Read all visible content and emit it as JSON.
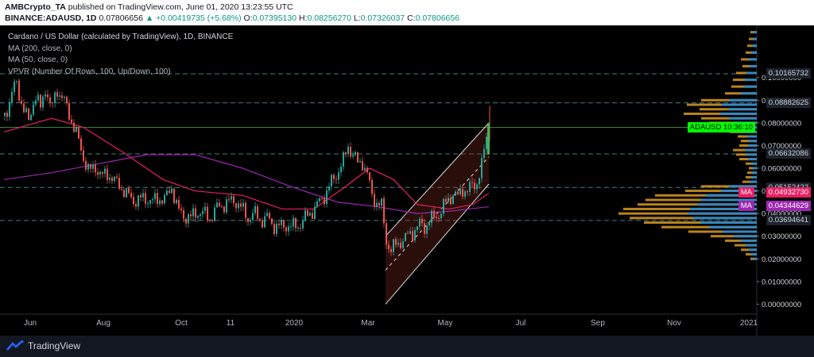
{
  "header": {
    "publisher": "AMBCrypto_TA",
    "published_text": "published on TradingView.com, June 01, 2020 13:23:55 UTC",
    "symbol": "BINANCE:ADAUSD, 1D",
    "last": "0.07806656",
    "change": "▲ +0.00419735 (+5.68%)",
    "o_label": "O:",
    "o_value": "0.07395130",
    "h_label": "H:",
    "h_value": "0.08256270",
    "l_label": "L:",
    "l_value": "0.07326037",
    "c_label": "C:",
    "c_value": "0.07806656"
  },
  "legend": {
    "title": "Cardano / US Dollar (calculated by TradingView), 1D, BINANCE",
    "ma200": "MA (200, close, 0)",
    "ma50": "MA (50, close, 0)",
    "vpvr": "VPVR (Number Of Rows, 100, Up/Down, 100)"
  },
  "footer": {
    "brand": "TradingView"
  },
  "colors": {
    "up": "#26a69a",
    "down": "#ef5350",
    "ma200": "#9c27b0",
    "ma50": "#e91e63",
    "vol_up": "#2e88c9",
    "vol_down": "#d99a25",
    "last_tag": "#00ff00"
  },
  "chart_data": {
    "type": "candlestick",
    "title": "Cardano / US Dollar (calculated by TradingView), 1D, BINANCE",
    "y_range": [
      -0.003,
      0.123
    ],
    "x_labels": [
      "Jun",
      "Aug",
      "Oct",
      "11",
      "2020",
      "Mar",
      "May",
      "Jul",
      "Sep",
      "Nov",
      "2021"
    ],
    "y_ticks": [
      "0.00000000",
      "0.01000000",
      "0.02000000",
      "0.03000000",
      "0.04000000",
      "0.05000000",
      "0.06000000",
      "0.07000000",
      "0.08000000",
      "0.09000000",
      "0.10000000"
    ],
    "price_tags": [
      {
        "label": "0.10165732",
        "value": 0.10165732,
        "kind": "level"
      },
      {
        "label": "0.08882625",
        "value": 0.08882625,
        "kind": "level"
      },
      {
        "label": "0.07806656",
        "value": 0.07806656,
        "kind": "last"
      },
      {
        "label": "0.06632086",
        "value": 0.06632086,
        "kind": "level"
      },
      {
        "label": "0.05152422",
        "value": 0.05152422,
        "kind": "level"
      },
      {
        "label": "0.04932730",
        "value": 0.0493273,
        "kind": "ma50"
      },
      {
        "label": "0.04344629",
        "value": 0.04344629,
        "kind": "ma200"
      },
      {
        "label": "0.03694641",
        "value": 0.03694641,
        "kind": "level"
      }
    ],
    "last_price_label": "ADAUSD",
    "last_price_time": "10:36:10",
    "ma_label": "MA",
    "price_series": [
      [
        0,
        0.083
      ],
      [
        8,
        0.092
      ],
      [
        14,
        0.098
      ],
      [
        22,
        0.088
      ],
      [
        30,
        0.08
      ],
      [
        38,
        0.093
      ],
      [
        45,
        0.086
      ],
      [
        52,
        0.097
      ],
      [
        58,
        0.085
      ],
      [
        66,
        0.095
      ],
      [
        74,
        0.09
      ],
      [
        82,
        0.083
      ],
      [
        90,
        0.075
      ],
      [
        98,
        0.066
      ],
      [
        106,
        0.058
      ],
      [
        114,
        0.061
      ],
      [
        122,
        0.056
      ],
      [
        130,
        0.058
      ],
      [
        138,
        0.054
      ],
      [
        146,
        0.052
      ],
      [
        154,
        0.048
      ],
      [
        162,
        0.046
      ],
      [
        170,
        0.046
      ],
      [
        178,
        0.047
      ],
      [
        186,
        0.045
      ],
      [
        194,
        0.047
      ],
      [
        202,
        0.046
      ],
      [
        210,
        0.052
      ],
      [
        218,
        0.041
      ],
      [
        226,
        0.039
      ],
      [
        234,
        0.038
      ],
      [
        242,
        0.041
      ],
      [
        250,
        0.04
      ],
      [
        258,
        0.038
      ],
      [
        266,
        0.042
      ],
      [
        274,
        0.044
      ],
      [
        282,
        0.045
      ],
      [
        290,
        0.046
      ],
      [
        298,
        0.042
      ],
      [
        306,
        0.038
      ],
      [
        314,
        0.04
      ],
      [
        322,
        0.037
      ],
      [
        330,
        0.038
      ],
      [
        338,
        0.035
      ],
      [
        346,
        0.034
      ],
      [
        354,
        0.035
      ],
      [
        362,
        0.034
      ],
      [
        370,
        0.035
      ],
      [
        378,
        0.038
      ],
      [
        386,
        0.041
      ],
      [
        394,
        0.044
      ],
      [
        402,
        0.048
      ],
      [
        410,
        0.053
      ],
      [
        418,
        0.058
      ],
      [
        426,
        0.063
      ],
      [
        432,
        0.07
      ],
      [
        438,
        0.066
      ],
      [
        444,
        0.062
      ],
      [
        450,
        0.063
      ],
      [
        456,
        0.057
      ],
      [
        462,
        0.048
      ],
      [
        468,
        0.045
      ],
      [
        474,
        0.043
      ],
      [
        480,
        0.028
      ],
      [
        486,
        0.024
      ],
      [
        492,
        0.026
      ],
      [
        498,
        0.028
      ],
      [
        504,
        0.029
      ],
      [
        510,
        0.031
      ],
      [
        516,
        0.033
      ],
      [
        522,
        0.035
      ],
      [
        528,
        0.034
      ],
      [
        534,
        0.037
      ],
      [
        540,
        0.038
      ],
      [
        546,
        0.04
      ],
      [
        552,
        0.043
      ],
      [
        558,
        0.046
      ],
      [
        564,
        0.049
      ],
      [
        570,
        0.047
      ],
      [
        576,
        0.051
      ],
      [
        582,
        0.05
      ],
      [
        588,
        0.052
      ],
      [
        594,
        0.054
      ],
      [
        600,
        0.061
      ],
      [
        606,
        0.074
      ],
      [
        610,
        0.078
      ]
    ],
    "ma200_series": [
      [
        0,
        0.055
      ],
      [
        60,
        0.058
      ],
      [
        120,
        0.062
      ],
      [
        180,
        0.066
      ],
      [
        240,
        0.066
      ],
      [
        300,
        0.06
      ],
      [
        360,
        0.052
      ],
      [
        420,
        0.045
      ],
      [
        470,
        0.043
      ],
      [
        520,
        0.04
      ],
      [
        560,
        0.041
      ],
      [
        610,
        0.043
      ]
    ],
    "ma50_series": [
      [
        0,
        0.076
      ],
      [
        60,
        0.082
      ],
      [
        100,
        0.078
      ],
      [
        150,
        0.067
      ],
      [
        200,
        0.055
      ],
      [
        240,
        0.05
      ],
      [
        300,
        0.048
      ],
      [
        350,
        0.042
      ],
      [
        390,
        0.042
      ],
      [
        430,
        0.052
      ],
      [
        460,
        0.06
      ],
      [
        490,
        0.055
      ],
      [
        520,
        0.044
      ],
      [
        560,
        0.042
      ],
      [
        590,
        0.044
      ],
      [
        610,
        0.049
      ]
    ],
    "channel": {
      "upper": [
        [
          480,
          0.03
        ],
        [
          610,
          0.08
        ]
      ],
      "lower": [
        [
          480,
          0.0
        ],
        [
          610,
          0.053
        ]
      ],
      "mid": [
        [
          480,
          0.015
        ],
        [
          610,
          0.065
        ]
      ]
    }
  }
}
